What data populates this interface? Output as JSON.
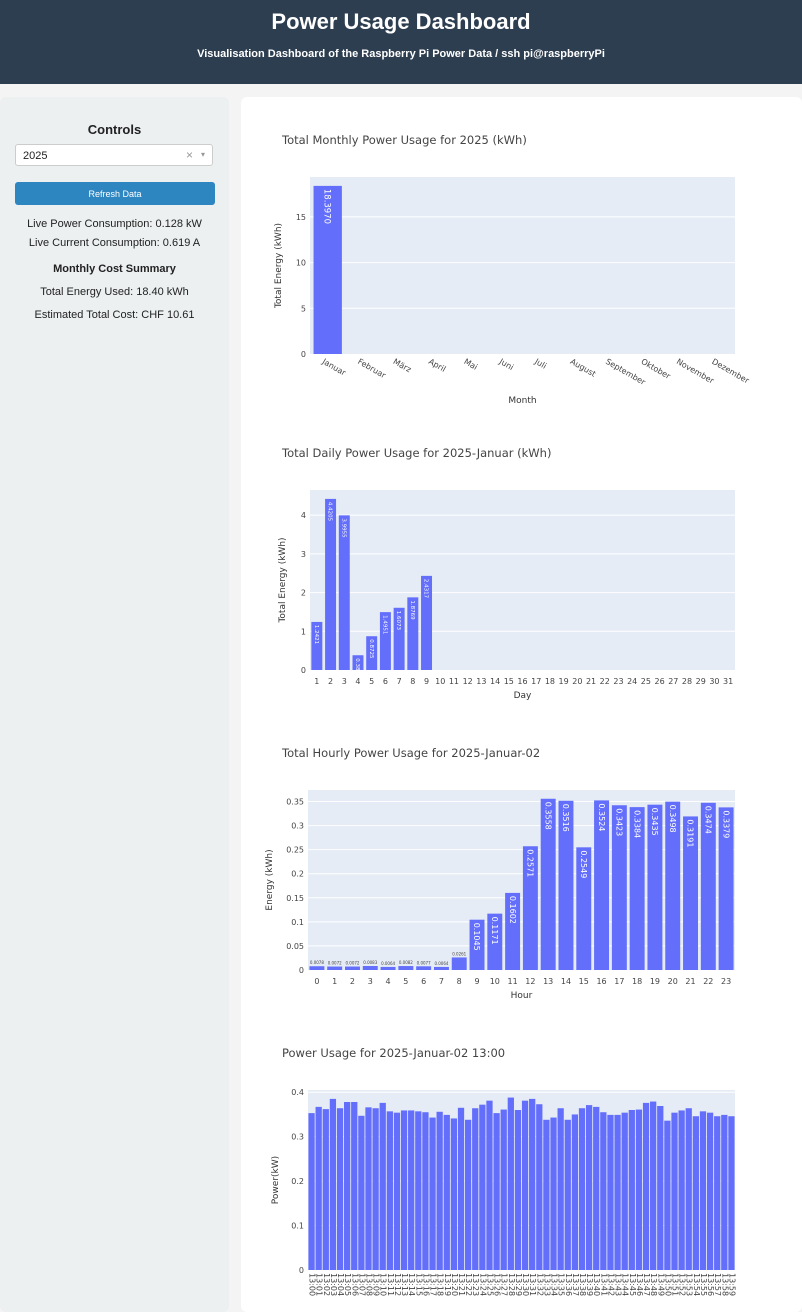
{
  "header": {
    "title": "Power Usage Dashboard",
    "subtitle": "Visualisation Dashboard of the Raspberry Pi Power Data / ssh pi@raspberryPi"
  },
  "sidebar": {
    "controls_title": "Controls",
    "year_select": {
      "value": "2025",
      "clear_glyph": "×",
      "caret_glyph": "▾"
    },
    "refresh_label": "Refresh Data",
    "live_power": "Live Power Consumption: 0.128 kW",
    "live_current": "Live Current Consumption: 0.619 A",
    "summary_title": "Monthly Cost Summary",
    "total_energy": "Total Energy Used: 18.40 kWh",
    "total_cost": "Estimated Total Cost: CHF 10.61"
  },
  "colors": {
    "bar": "#636efa",
    "plot_bg": "#e5ecf6",
    "header_bg": "#2c3e50",
    "button": "#2e86c1"
  },
  "chart_data": [
    {
      "type": "bar",
      "title": "Total Monthly Power Usage for 2025 (kWh)",
      "xlabel": "Month",
      "ylabel": "Total Energy (kWh)",
      "categories": [
        "Januar",
        "Februar",
        "März",
        "April",
        "Mai",
        "Juni",
        "Juli",
        "August",
        "September",
        "Oktober",
        "November",
        "Dezember"
      ],
      "values": [
        18.397,
        null,
        null,
        null,
        null,
        null,
        null,
        null,
        null,
        null,
        null,
        null
      ],
      "labels": [
        "18.3970",
        "",
        "",
        "",
        "",
        "",
        "",
        "",
        "",
        "",
        "",
        ""
      ],
      "ylim": [
        0,
        19.37
      ],
      "yticks": [
        0,
        5,
        10,
        15
      ]
    },
    {
      "type": "bar",
      "title": "Total Daily Power Usage for 2025-Januar (kWh)",
      "xlabel": "Day",
      "ylabel": "Total Energy (kWh)",
      "categories": [
        "1",
        "2",
        "3",
        "4",
        "5",
        "6",
        "7",
        "8",
        "9",
        "10",
        "11",
        "12",
        "13",
        "14",
        "15",
        "16",
        "17",
        "18",
        "19",
        "20",
        "21",
        "22",
        "23",
        "24",
        "25",
        "26",
        "27",
        "28",
        "29",
        "30",
        "31"
      ],
      "values": [
        1.2421,
        4.4205,
        3.9955,
        0.3813,
        0.8725,
        1.4951,
        1.6073,
        1.8769,
        2.4317,
        null,
        null,
        null,
        null,
        null,
        null,
        null,
        null,
        null,
        null,
        null,
        null,
        null,
        null,
        null,
        null,
        null,
        null,
        null,
        null,
        null,
        null
      ],
      "labels": [
        "1.2421",
        "4.4205",
        "3.9955",
        "0.3813",
        "0.8725",
        "1.4951",
        "1.6073",
        "1.8769",
        "2.4317",
        "",
        "",
        "",
        "",
        "",
        "",
        "",
        "",
        "",
        "",
        "",
        "",
        "",
        "",
        "",
        "",
        "",
        "",
        "",
        "",
        "",
        ""
      ],
      "ylim": [
        0,
        4.65
      ],
      "yticks": [
        0,
        1,
        2,
        3,
        4
      ]
    },
    {
      "type": "bar",
      "title": "Total Hourly Power Usage for 2025-Januar-02",
      "xlabel": "Hour",
      "ylabel": "Energy (kWh)",
      "categories": [
        "0",
        "1",
        "2",
        "3",
        "4",
        "5",
        "6",
        "7",
        "8",
        "9",
        "10",
        "11",
        "12",
        "13",
        "14",
        "15",
        "16",
        "17",
        "18",
        "19",
        "20",
        "21",
        "22",
        "23"
      ],
      "values": [
        0.0078,
        0.0072,
        0.0072,
        0.0083,
        0.0064,
        0.0082,
        0.0077,
        0.0064,
        0.0261,
        0.1045,
        0.1171,
        0.1602,
        0.2571,
        0.3558,
        0.3516,
        0.2549,
        0.3524,
        0.3423,
        0.3384,
        0.3435,
        0.3498,
        0.3191,
        0.3474,
        0.3379
      ],
      "labels": [
        "0.0078",
        "0.0072",
        "0.0072",
        "0.0083",
        "0.0064",
        "0.0082",
        "0.0077",
        "0.0064",
        "0.0261",
        "0.1045",
        "0.1171",
        "0.1602",
        "0.2571",
        "0.3558",
        "0.3516",
        "0.2549",
        "0.3524",
        "0.3423",
        "0.3384",
        "0.3435",
        "0.3498",
        "0.3191",
        "0.3474",
        "0.3379"
      ],
      "ylim": [
        0,
        0.374
      ],
      "yticks": [
        0,
        0.05,
        0.1,
        0.15,
        0.2,
        0.25,
        0.3,
        0.35
      ],
      "yticklabels": [
        "0",
        "0.05",
        "0.1",
        "0.15",
        "0.2",
        "0.25",
        "0.3",
        "0.35"
      ]
    },
    {
      "type": "bar",
      "title": "Power Usage for 2025-Januar-02 13:00",
      "xlabel": "",
      "ylabel": "Power(kW)",
      "categories": [
        "13:00",
        "13:01",
        "13:02",
        "13:03",
        "13:04",
        "13:05",
        "13:06",
        "13:07",
        "13:08",
        "13:09",
        "13:10",
        "13:11",
        "13:12",
        "13:13",
        "13:14",
        "13:15",
        "13:16",
        "13:17",
        "13:18",
        "13:19",
        "13:20",
        "13:21",
        "13:22",
        "13:23",
        "13:24",
        "13:25",
        "13:26",
        "13:27",
        "13:28",
        "13:29",
        "13:30",
        "13:31",
        "13:32",
        "13:33",
        "13:34",
        "13:35",
        "13:36",
        "13:37",
        "13:38",
        "13:39",
        "13:40",
        "13:41",
        "13:42",
        "13:43",
        "13:44",
        "13:45",
        "13:46",
        "13:47",
        "13:48",
        "13:49",
        "13:50",
        "13:51",
        "13:52",
        "13:53",
        "13:54",
        "13:55",
        "13:56",
        "13:57",
        "13:58",
        "13:59"
      ],
      "values": [
        0.353,
        0.367,
        0.362,
        0.385,
        0.364,
        0.378,
        0.378,
        0.347,
        0.366,
        0.364,
        0.376,
        0.357,
        0.354,
        0.359,
        0.359,
        0.357,
        0.355,
        0.343,
        0.356,
        0.349,
        0.341,
        0.365,
        0.338,
        0.364,
        0.372,
        0.381,
        0.353,
        0.361,
        0.388,
        0.36,
        0.381,
        0.385,
        0.373,
        0.338,
        0.343,
        0.364,
        0.338,
        0.35,
        0.364,
        0.371,
        0.367,
        0.355,
        0.349,
        0.349,
        0.354,
        0.36,
        0.361,
        0.376,
        0.379,
        0.369,
        0.336,
        0.354,
        0.359,
        0.364,
        0.346,
        0.357,
        0.354,
        0.346,
        0.349,
        0.346
      ],
      "ylim": [
        0,
        0.405
      ],
      "yticks": [
        0,
        0.1,
        0.2,
        0.3,
        0.4
      ],
      "yticklabels": [
        "0",
        "0.1",
        "0.2",
        "0.3",
        "0.4"
      ]
    }
  ]
}
